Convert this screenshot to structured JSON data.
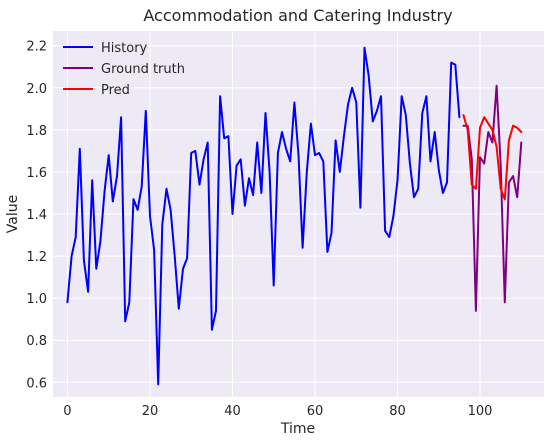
{
  "chart_data": {
    "type": "line",
    "title": "Accommodation and Catering Industry",
    "xlabel": "Time",
    "ylabel": "Value",
    "xlim": [
      -3.5,
      115.5
    ],
    "ylim": [
      0.53,
      2.27
    ],
    "xticks": [
      0,
      20,
      40,
      60,
      80,
      100
    ],
    "yticks": [
      0.6,
      0.8,
      1.0,
      1.2,
      1.4,
      1.6,
      1.8,
      2.0,
      2.2
    ],
    "grid": true,
    "legend_position": "top-left",
    "series": [
      {
        "name": "History",
        "color": "#0000ff",
        "x": [
          0,
          1,
          2,
          3,
          4,
          5,
          6,
          7,
          8,
          9,
          10,
          11,
          12,
          13,
          14,
          15,
          16,
          17,
          18,
          19,
          20,
          21,
          22,
          23,
          24,
          25,
          26,
          27,
          28,
          29,
          30,
          31,
          32,
          33,
          34,
          35,
          36,
          37,
          38,
          39,
          40,
          41,
          42,
          43,
          44,
          45,
          46,
          47,
          48,
          49,
          50,
          51,
          52,
          53,
          54,
          55,
          56,
          57,
          58,
          59,
          60,
          61,
          62,
          63,
          64,
          65,
          66,
          67,
          68,
          69,
          70,
          71,
          72,
          73,
          74,
          75,
          76,
          77,
          78,
          79,
          80,
          81,
          82,
          83,
          84,
          85,
          86,
          87,
          88,
          89,
          90,
          91,
          92,
          93,
          94,
          95
        ],
        "values": [
          0.98,
          1.2,
          1.29,
          1.71,
          1.18,
          1.03,
          1.56,
          1.14,
          1.27,
          1.51,
          1.68,
          1.46,
          1.58,
          1.86,
          0.89,
          0.98,
          1.47,
          1.42,
          1.53,
          1.89,
          1.39,
          1.23,
          0.59,
          1.35,
          1.52,
          1.42,
          1.2,
          0.95,
          1.14,
          1.19,
          1.69,
          1.7,
          1.54,
          1.66,
          1.74,
          0.85,
          0.94,
          1.96,
          1.76,
          1.77,
          1.4,
          1.63,
          1.66,
          1.44,
          1.57,
          1.49,
          1.74,
          1.5,
          1.88,
          1.6,
          1.06,
          1.69,
          1.79,
          1.71,
          1.65,
          1.93,
          1.68,
          1.24,
          1.6,
          1.83,
          1.68,
          1.69,
          1.65,
          1.22,
          1.31,
          1.75,
          1.6,
          1.77,
          1.92,
          2.0,
          1.93,
          1.43,
          2.19,
          2.06,
          1.84,
          1.89,
          1.96,
          1.32,
          1.29,
          1.39,
          1.56,
          1.96,
          1.87,
          1.64,
          1.48,
          1.52,
          1.88,
          1.96,
          1.65,
          1.79,
          1.61,
          1.5,
          1.55,
          2.12,
          2.11,
          1.86
        ]
      },
      {
        "name": "Ground truth",
        "color": "#800080",
        "x": [
          96,
          97,
          98,
          99,
          100,
          101,
          102,
          103,
          104,
          105,
          106,
          107,
          108,
          109,
          110
        ],
        "values": [
          1.82,
          1.82,
          1.66,
          0.94,
          1.67,
          1.64,
          1.79,
          1.74,
          2.01,
          1.63,
          0.98,
          1.55,
          1.58,
          1.48,
          1.74
        ]
      },
      {
        "name": "Pred",
        "color": "#ff0000",
        "x": [
          96,
          97,
          98,
          99,
          100,
          101,
          102,
          103,
          104,
          105,
          106,
          107,
          108,
          109,
          110
        ],
        "values": [
          1.87,
          1.8,
          1.54,
          1.52,
          1.81,
          1.86,
          1.83,
          1.8,
          1.72,
          1.52,
          1.47,
          1.75,
          1.82,
          1.81,
          1.79
        ]
      }
    ]
  }
}
